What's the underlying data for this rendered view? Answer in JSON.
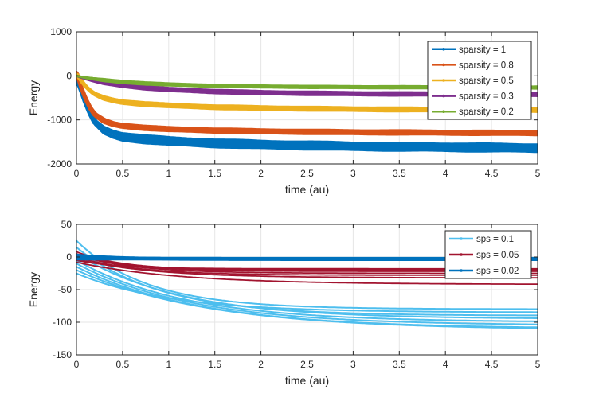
{
  "chart_data": [
    {
      "type": "line",
      "title": "",
      "xlabel": "time (au)",
      "ylabel": "Energy",
      "xlim": [
        0,
        5
      ],
      "ylim": [
        -2000,
        1000
      ],
      "xticks": [
        0,
        0.5,
        1,
        1.5,
        2,
        2.5,
        3,
        3.5,
        4,
        4.5,
        5
      ],
      "yticks": [
        -2000,
        -1000,
        0,
        1000
      ],
      "grid": true,
      "legend_position": "top-right",
      "series": [
        {
          "name": "sparsity = 1",
          "color": "#0072BD",
          "x": [
            0,
            0.05,
            0.1,
            0.15,
            0.2,
            0.3,
            0.4,
            0.5,
            0.75,
            1,
            1.5,
            2,
            2.5,
            3,
            3.5,
            4,
            4.5,
            5
          ],
          "values": [
            -50,
            -300,
            -600,
            -850,
            -1050,
            -1230,
            -1320,
            -1380,
            -1440,
            -1480,
            -1530,
            -1560,
            -1580,
            -1600,
            -1610,
            -1620,
            -1630,
            -1640
          ],
          "spread": 90
        },
        {
          "name": "sparsity = 0.8",
          "color": "#D95319",
          "x": [
            0,
            0.05,
            0.1,
            0.15,
            0.2,
            0.3,
            0.4,
            0.5,
            0.75,
            1,
            1.5,
            2,
            2.5,
            3,
            3.5,
            4,
            4.5,
            5
          ],
          "values": [
            100,
            -250,
            -520,
            -730,
            -880,
            -1020,
            -1090,
            -1130,
            -1180,
            -1210,
            -1240,
            -1260,
            -1270,
            -1280,
            -1285,
            -1290,
            -1295,
            -1300
          ],
          "spread": 50
        },
        {
          "name": "sparsity = 0.5",
          "color": "#EDB120",
          "x": [
            0,
            0.05,
            0.1,
            0.15,
            0.2,
            0.3,
            0.4,
            0.5,
            0.75,
            1,
            1.5,
            2,
            2.5,
            3,
            3.5,
            4,
            4.5,
            5
          ],
          "values": [
            50,
            -100,
            -230,
            -330,
            -410,
            -500,
            -550,
            -590,
            -640,
            -670,
            -710,
            -730,
            -745,
            -755,
            -762,
            -768,
            -772,
            -775
          ],
          "spread": 45
        },
        {
          "name": "sparsity = 0.3",
          "color": "#7E2F8E",
          "x": [
            0,
            0.1,
            0.2,
            0.3,
            0.5,
            0.75,
            1,
            1.5,
            2,
            2.5,
            3,
            3.5,
            4,
            4.5,
            5
          ],
          "values": [
            0,
            -60,
            -110,
            -150,
            -210,
            -270,
            -310,
            -355,
            -380,
            -395,
            -405,
            -410,
            -415,
            -418,
            -420
          ],
          "spread": 40
        },
        {
          "name": "sparsity = 0.2",
          "color": "#77AC30",
          "x": [
            0,
            0.1,
            0.2,
            0.3,
            0.5,
            0.75,
            1,
            1.5,
            2,
            2.5,
            3,
            3.5,
            4,
            4.5,
            5
          ],
          "values": [
            0,
            -40,
            -70,
            -95,
            -135,
            -170,
            -195,
            -225,
            -240,
            -250,
            -255,
            -258,
            -260,
            -262,
            -263
          ],
          "spread": 28
        }
      ]
    },
    {
      "type": "line",
      "title": "",
      "xlabel": "time (au)",
      "ylabel": "Energy",
      "xlim": [
        0,
        5
      ],
      "ylim": [
        -150,
        50
      ],
      "xticks": [
        0,
        0.5,
        1,
        1.5,
        2,
        2.5,
        3,
        3.5,
        4,
        4.5,
        5
      ],
      "yticks": [
        -150,
        -100,
        -50,
        0,
        50
      ],
      "grid": true,
      "legend_position": "top-right",
      "series": [
        {
          "name": "sps = 0.1",
          "color": "#4DBEEE",
          "curves": [
            {
              "start": 25,
              "end": -80,
              "rate": 1.3
            },
            {
              "start": 15,
              "end": -90,
              "rate": 1.1
            },
            {
              "start": 5,
              "end": -95,
              "rate": 0.9
            },
            {
              "start": -5,
              "end": -100,
              "rate": 0.85
            },
            {
              "start": -10,
              "end": -105,
              "rate": 0.8
            },
            {
              "start": -15,
              "end": -110,
              "rate": 0.75
            },
            {
              "start": -20,
              "end": -112,
              "rate": 0.7
            },
            {
              "start": -25,
              "end": -85,
              "rate": 1.0
            }
          ]
        },
        {
          "name": "sps = 0.05",
          "color": "#A2142F",
          "curves": [
            {
              "start": 8,
              "end": -20,
              "rate": 2.0
            },
            {
              "start": 5,
              "end": -22,
              "rate": 1.8
            },
            {
              "start": 3,
              "end": -25,
              "rate": 1.6
            },
            {
              "start": 0,
              "end": -28,
              "rate": 1.5
            },
            {
              "start": -3,
              "end": -32,
              "rate": 1.2
            },
            {
              "start": -5,
              "end": -18,
              "rate": 2.2
            },
            {
              "start": -8,
              "end": -42,
              "rate": 0.9
            }
          ]
        },
        {
          "name": "sps = 0.02",
          "color": "#0072BD",
          "curves": [
            {
              "start": 4,
              "end": -2,
              "rate": 2.0
            },
            {
              "start": 3,
              "end": -3,
              "rate": 2.0
            },
            {
              "start": 2,
              "end": -4,
              "rate": 2.0
            },
            {
              "start": 1,
              "end": -1,
              "rate": 2.0
            },
            {
              "start": 0,
              "end": -5,
              "rate": 2.0
            },
            {
              "start": -2,
              "end": -3,
              "rate": 2.0
            },
            {
              "start": -4,
              "end": -4,
              "rate": 2.0
            }
          ]
        }
      ]
    }
  ]
}
